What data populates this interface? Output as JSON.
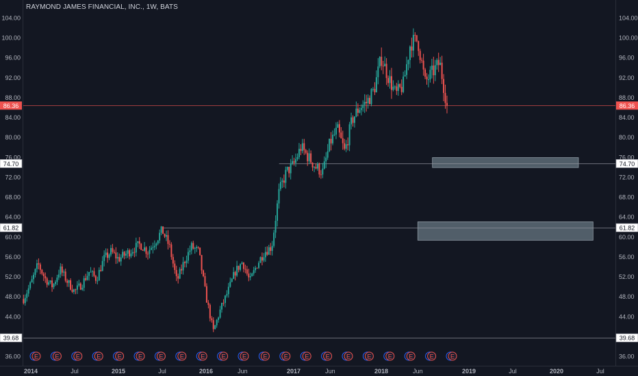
{
  "header": {
    "title": "RAYMOND JAMES FINANCIAL, INC., 1W, BATS"
  },
  "colors": {
    "background": "#131722",
    "axis_text": "#b2b5be",
    "up": "#26a69a",
    "down": "#ef5350",
    "level_line": "#9598a1",
    "price_line": "#ef5350",
    "zone_fill": "#5d6b75",
    "event_icon": "#ef5350",
    "event_icon_alt": "#2962ff"
  },
  "chart_data": {
    "type": "candlestick",
    "title": "RAYMOND JAMES FINANCIAL, INC., 1W, BATS",
    "ylim": [
      34,
      108
    ],
    "y_ticks": [
      36,
      40,
      44,
      48,
      52,
      56,
      60,
      64,
      68,
      72,
      76,
      80,
      84,
      88,
      92,
      96,
      100,
      104
    ],
    "y_tick_labels": [
      "36.00",
      "40.00",
      "44.00",
      "48.00",
      "52.00",
      "56.00",
      "60.00",
      "64.00",
      "68.00",
      "72.00",
      "76.00",
      "80.00",
      "84.00",
      "88.00",
      "92.00",
      "96.00",
      "100.00",
      "104.00"
    ],
    "x_range": [
      "2013-12",
      "2020-09"
    ],
    "x_ticks": [
      {
        "date": "2014-01",
        "label": "2014"
      },
      {
        "date": "2014-07",
        "label": "Jul"
      },
      {
        "date": "2015-01",
        "label": "2015"
      },
      {
        "date": "2015-07",
        "label": "Jul"
      },
      {
        "date": "2016-01",
        "label": "2016"
      },
      {
        "date": "2016-06",
        "label": "Jun"
      },
      {
        "date": "2017-01",
        "label": "2017"
      },
      {
        "date": "2017-06",
        "label": "Jun"
      },
      {
        "date": "2018-01",
        "label": "2018"
      },
      {
        "date": "2018-06",
        "label": "Jun"
      },
      {
        "date": "2019-01",
        "label": "2019"
      },
      {
        "date": "2019-07",
        "label": "Jul"
      },
      {
        "date": "2020-01",
        "label": "2020"
      },
      {
        "date": "2020-07",
        "label": "Jul"
      }
    ],
    "price_path": [
      {
        "date": "2013-12",
        "price": 47.5
      },
      {
        "date": "2014-01",
        "price": 50.5
      },
      {
        "date": "2014-02",
        "price": 54.5
      },
      {
        "date": "2014-03",
        "price": 51.5
      },
      {
        "date": "2014-04",
        "price": 50.0
      },
      {
        "date": "2014-05",
        "price": 53.5
      },
      {
        "date": "2014-06",
        "price": 51.0
      },
      {
        "date": "2014-07",
        "price": 49.0
      },
      {
        "date": "2014-08",
        "price": 50.5
      },
      {
        "date": "2014-09",
        "price": 53.0
      },
      {
        "date": "2014-10",
        "price": 51.5
      },
      {
        "date": "2014-11",
        "price": 55.5
      },
      {
        "date": "2014-12",
        "price": 57.0
      },
      {
        "date": "2015-01",
        "price": 55.5
      },
      {
        "date": "2015-02",
        "price": 56.5
      },
      {
        "date": "2015-03",
        "price": 57.5
      },
      {
        "date": "2015-04",
        "price": 58.5
      },
      {
        "date": "2015-05",
        "price": 57.0
      },
      {
        "date": "2015-06",
        "price": 59.0
      },
      {
        "date": "2015-07",
        "price": 61.3
      },
      {
        "date": "2015-08",
        "price": 58.0
      },
      {
        "date": "2015-09",
        "price": 51.0
      },
      {
        "date": "2015-10",
        "price": 55.0
      },
      {
        "date": "2015-11",
        "price": 58.0
      },
      {
        "date": "2015-12",
        "price": 57.0
      },
      {
        "date": "2016-01",
        "price": 48.0
      },
      {
        "date": "2016-02",
        "price": 41.0
      },
      {
        "date": "2016-03",
        "price": 45.5
      },
      {
        "date": "2016-04",
        "price": 49.0
      },
      {
        "date": "2016-05",
        "price": 53.0
      },
      {
        "date": "2016-06",
        "price": 55.0
      },
      {
        "date": "2016-07",
        "price": 51.0
      },
      {
        "date": "2016-08",
        "price": 54.5
      },
      {
        "date": "2016-09",
        "price": 57.0
      },
      {
        "date": "2016-10",
        "price": 58.0
      },
      {
        "date": "2016-11",
        "price": 69.0
      },
      {
        "date": "2016-12",
        "price": 73.0
      },
      {
        "date": "2017-01",
        "price": 74.5
      },
      {
        "date": "2017-02",
        "price": 78.0
      },
      {
        "date": "2017-03",
        "price": 76.0
      },
      {
        "date": "2017-04",
        "price": 74.0
      },
      {
        "date": "2017-05",
        "price": 73.0
      },
      {
        "date": "2017-06",
        "price": 79.0
      },
      {
        "date": "2017-07",
        "price": 81.5
      },
      {
        "date": "2017-08",
        "price": 77.0
      },
      {
        "date": "2017-09",
        "price": 83.5
      },
      {
        "date": "2017-10",
        "price": 86.0
      },
      {
        "date": "2017-11",
        "price": 87.0
      },
      {
        "date": "2017-12",
        "price": 89.5
      },
      {
        "date": "2018-01",
        "price": 96.0
      },
      {
        "date": "2018-02",
        "price": 92.0
      },
      {
        "date": "2018-03",
        "price": 88.5
      },
      {
        "date": "2018-04",
        "price": 90.5
      },
      {
        "date": "2018-05",
        "price": 99.0
      },
      {
        "date": "2018-06",
        "price": 99.5
      },
      {
        "date": "2018-07",
        "price": 91.0
      },
      {
        "date": "2018-08",
        "price": 93.0
      },
      {
        "date": "2018-09",
        "price": 95.0
      },
      {
        "date": "2018-10",
        "price": 86.4
      }
    ],
    "levels": [
      {
        "price": 86.36,
        "label": "86.36",
        "kind": "last-price"
      },
      {
        "price": 74.7,
        "label": "74.70",
        "kind": "support",
        "from": "2016-11"
      },
      {
        "price": 61.82,
        "label": "61.82",
        "kind": "support",
        "from": "2015-07"
      },
      {
        "price": 39.68,
        "label": "39.68",
        "kind": "support",
        "from": "2013-12"
      }
    ],
    "zones": [
      {
        "from": "2018-08",
        "to": "2020-04",
        "low": 73.9,
        "high": 75.9
      },
      {
        "from": "2018-06",
        "to": "2020-06",
        "low": 59.3,
        "high": 63.0
      }
    ],
    "events": {
      "count": 21,
      "label": "E",
      "from": "2014-01",
      "to": "2018-10"
    }
  }
}
